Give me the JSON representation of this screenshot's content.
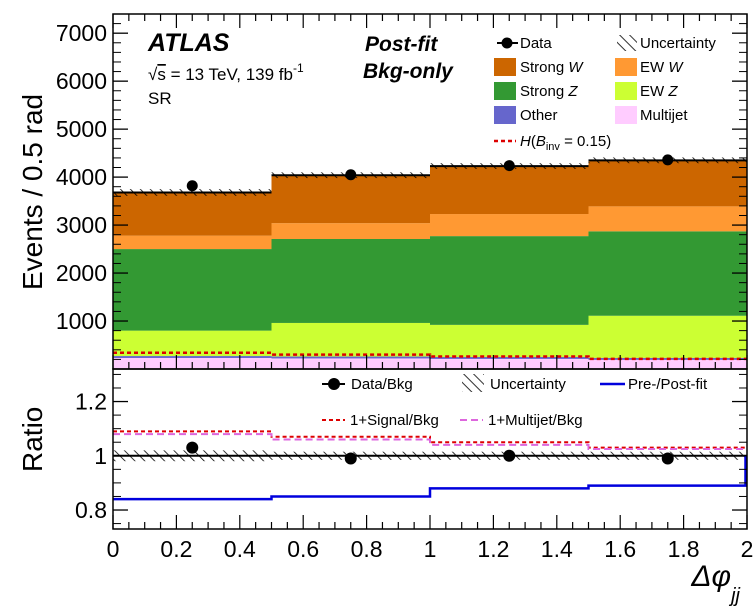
{
  "chart_data": [
    {
      "type": "bar",
      "panel": "main",
      "stacked": true,
      "x_edges": [
        0,
        0.5,
        1,
        1.5,
        2
      ],
      "ylabel": "Events / 0.5 rad",
      "ylim": [
        0,
        7400
      ],
      "yticks": [
        1000,
        2000,
        3000,
        4000,
        5000,
        6000,
        7000
      ],
      "series": [
        {
          "name": "Multijet",
          "color": "#ffccff",
          "values": [
            230,
            220,
            210,
            190
          ]
        },
        {
          "name": "Other",
          "color": "#6666cc",
          "values": [
            40,
            40,
            40,
            40
          ]
        },
        {
          "name": "EW Z",
          "color": "#ccff33",
          "values": [
            530,
            700,
            670,
            880
          ]
        },
        {
          "name": "Strong Z",
          "color": "#339933",
          "values": [
            1700,
            1750,
            1850,
            1760
          ]
        },
        {
          "name": "EW W",
          "color": "#ff9933",
          "values": [
            280,
            330,
            460,
            520
          ]
        },
        {
          "name": "Strong W",
          "color": "#cc6600",
          "values": [
            900,
            1000,
            1000,
            960
          ]
        }
      ],
      "total": [
        3680,
        4040,
        4230,
        4350
      ],
      "uncertainty": [
        70,
        60,
        60,
        60
      ],
      "data": {
        "name": "Data",
        "x": [
          0.25,
          0.75,
          1.25,
          1.75
        ],
        "y": [
          3820,
          4050,
          4240,
          4360
        ]
      },
      "signal": {
        "name": "H(B_inv = 0.15)",
        "color": "#dd0000",
        "values": [
          340,
          300,
          260,
          210
        ]
      },
      "annotations": {
        "experiment": "ATLAS",
        "energy_prefix": "√",
        "energy_s": "s",
        "energy_rest": " = 13 TeV, 139 fb",
        "lumi_sup": "-1",
        "region": "SR",
        "stamp_line1": "Post-fit",
        "stamp_line2": "Bkg-only"
      },
      "legend": {
        "data": "Data",
        "uncertainty": "Uncertainty",
        "strong_w_pre": "Strong ",
        "strong_w_it": "W",
        "ew_w_pre": "EW ",
        "ew_w_it": "W",
        "strong_z_pre": "Strong ",
        "strong_z_it": "Z",
        "ew_z_pre": "EW ",
        "ew_z_it": "Z",
        "other": "Other",
        "multijet": "Multijet",
        "signal_H": "H",
        "signal_open": "(",
        "signal_B": "B",
        "signal_sub": "inv",
        "signal_rest": " = 0.15)"
      }
    },
    {
      "type": "line",
      "panel": "ratio",
      "x_edges": [
        0,
        0.5,
        1,
        1.5,
        2
      ],
      "ylabel": "Ratio",
      "ylim": [
        0.73,
        1.32
      ],
      "yticks": [
        0.8,
        1,
        1.2
      ],
      "ytick_labels": [
        "0.8",
        "1",
        "1.2"
      ],
      "xlabel_symbol": "Δφ",
      "xlabel_sub": "jj",
      "xticks": [
        0,
        0.2,
        0.4,
        0.6,
        0.8,
        1,
        1.2,
        1.4,
        1.6,
        1.8,
        2
      ],
      "xtick_labels": [
        "0",
        "0.2",
        "0.4",
        "0.6",
        "0.8",
        "1",
        "1.2",
        "1.4",
        "1.6",
        "1.8",
        "2"
      ],
      "data_bkg": {
        "name": "Data/Bkg",
        "x": [
          0.25,
          0.75,
          1.25,
          1.75
        ],
        "y": [
          1.03,
          0.99,
          1.0,
          0.99
        ]
      },
      "uncertainty": {
        "name": "Uncertainty",
        "values": [
          0.02,
          0.015,
          0.015,
          0.015
        ]
      },
      "pre_post_fit": {
        "name": "Pre-/Post-fit",
        "color": "#0000dd",
        "values": [
          0.84,
          0.85,
          0.88,
          0.89
        ]
      },
      "signal_bkg": {
        "name": "1+Signal/Bkg",
        "color": "#dd0000",
        "values": [
          1.09,
          1.07,
          1.05,
          1.03
        ]
      },
      "multijet_bkg": {
        "name": "1+Multijet/Bkg",
        "color": "#dd66dd",
        "values": [
          1.08,
          1.06,
          1.04,
          1.025
        ]
      }
    }
  ]
}
